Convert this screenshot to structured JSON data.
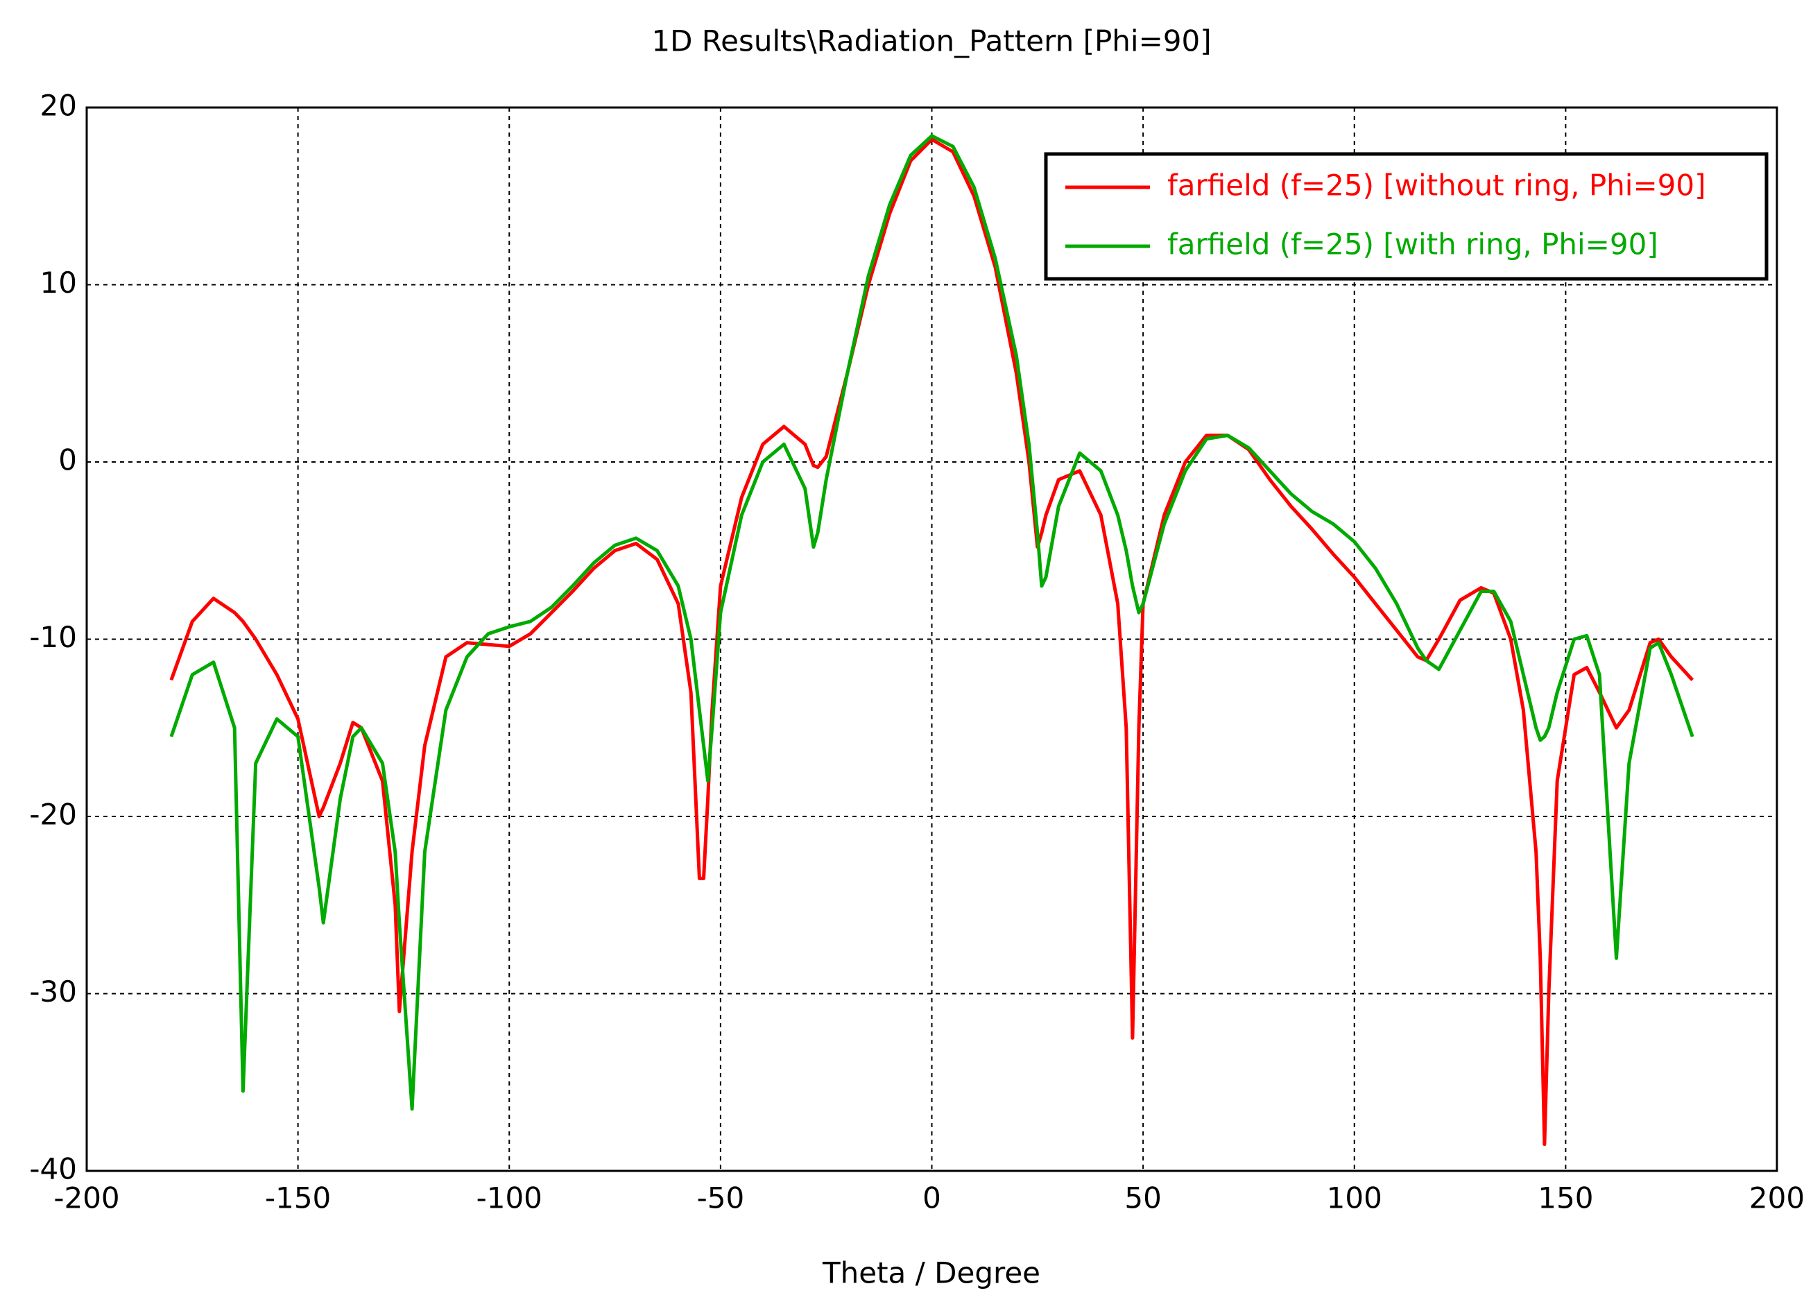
{
  "chart_data": {
    "type": "line",
    "title": "1D Results\\Radiation_Pattern [Phi=90]",
    "xlabel": "Theta / Degree",
    "x": [
      -180,
      -175,
      -170,
      -165,
      -163,
      -160,
      -155,
      -150,
      -145,
      -144,
      -140,
      -137,
      -135,
      -130,
      -127,
      -126,
      -124,
      -123,
      -120,
      -115,
      -110,
      -105,
      -100,
      -95,
      -90,
      -85,
      -80,
      -75,
      -70,
      -65,
      -60,
      -57,
      -55,
      -54,
      -53,
      -52,
      -50,
      -45,
      -40,
      -35,
      -30,
      -28,
      -27,
      -25,
      -20,
      -15,
      -10,
      -5,
      0,
      5,
      10,
      15,
      20,
      23,
      25,
      26,
      27,
      30,
      35,
      40,
      44,
      46,
      47.5,
      49,
      50,
      55,
      60,
      65,
      70,
      75,
      80,
      85,
      90,
      95,
      100,
      105,
      110,
      115,
      117,
      120,
      125,
      130,
      133,
      137,
      140,
      143,
      144,
      145,
      146,
      148,
      152,
      155,
      158,
      162,
      165,
      170,
      172,
      175,
      180
    ],
    "series": [
      {
        "name": "farfield (f=25) [without ring, Phi=90]",
        "color": "#ff0000",
        "values": [
          -12.3,
          -9,
          -7.7,
          -8.5,
          -9,
          -10,
          -12,
          -14.5,
          -20,
          -19.5,
          -17,
          -14.7,
          -15,
          -18,
          -25,
          -31,
          -25,
          -22,
          -16,
          -11,
          -10.2,
          -10.3,
          -10.4,
          -9.7,
          -8.5,
          -7.3,
          -6,
          -5,
          -4.6,
          -5.5,
          -8,
          -13,
          -23.5,
          -23.5,
          -19,
          -14,
          -7,
          -2,
          1,
          2,
          1,
          -0.2,
          -0.3,
          0.3,
          5,
          10,
          14,
          17,
          18.2,
          17.5,
          15,
          11,
          5,
          0,
          -4.8,
          -4,
          -3,
          -1,
          -0.5,
          -3,
          -8,
          -15,
          -32.5,
          -15,
          -8,
          -3,
          0,
          1.5,
          1.5,
          0.7,
          -1,
          -2.5,
          -3.8,
          -5.2,
          -6.5,
          -8,
          -9.5,
          -11,
          -11.2,
          -10,
          -7.8,
          -7.1,
          -7.4,
          -10,
          -14,
          -22,
          -28,
          -38.5,
          -30,
          -18,
          -12,
          -11.6,
          -13,
          -15,
          -14,
          -10.2,
          -10,
          -11,
          -12.3
        ]
      },
      {
        "name": "farfield (f=25) [with ring, Phi=90]",
        "color": "#00aa00",
        "values": [
          -15.5,
          -12,
          -11.3,
          -15,
          -35.5,
          -17,
          -14.5,
          -15.5,
          -24,
          -26,
          -19,
          -15.5,
          -15,
          -17,
          -22,
          -26,
          -33,
          -36.5,
          -22,
          -14,
          -11,
          -9.7,
          -9.3,
          -9,
          -8.2,
          -7,
          -5.7,
          -4.7,
          -4.3,
          -5,
          -7,
          -10,
          -14,
          -16,
          -18,
          -15,
          -8.5,
          -3,
          0,
          1,
          -1.5,
          -4.8,
          -4,
          -1,
          5,
          10.5,
          14.5,
          17.3,
          18.4,
          17.8,
          15.5,
          11.5,
          6,
          1,
          -4,
          -7,
          -6.5,
          -2.5,
          0.5,
          -0.5,
          -3,
          -5,
          -7,
          -8.5,
          -8,
          -3.5,
          -0.5,
          1.3,
          1.5,
          0.8,
          -0.5,
          -1.8,
          -2.8,
          -3.5,
          -4.5,
          -6,
          -8,
          -10.5,
          -11.2,
          -11.7,
          -9.5,
          -7.3,
          -7.3,
          -9,
          -12,
          -15,
          -15.7,
          -15.5,
          -15,
          -13,
          -10,
          -9.8,
          -12,
          -28,
          -17,
          -10.5,
          -10.2,
          -12,
          -15.5
        ]
      }
    ],
    "xlim": [
      -200,
      200
    ],
    "xticks": [
      -200,
      -150,
      -100,
      -50,
      0,
      50,
      100,
      150,
      200
    ],
    "ylim": [
      -40,
      20
    ],
    "yticks": [
      -40,
      -30,
      -20,
      -10,
      0,
      10,
      20
    ],
    "grid": true,
    "legend": "upper right"
  }
}
